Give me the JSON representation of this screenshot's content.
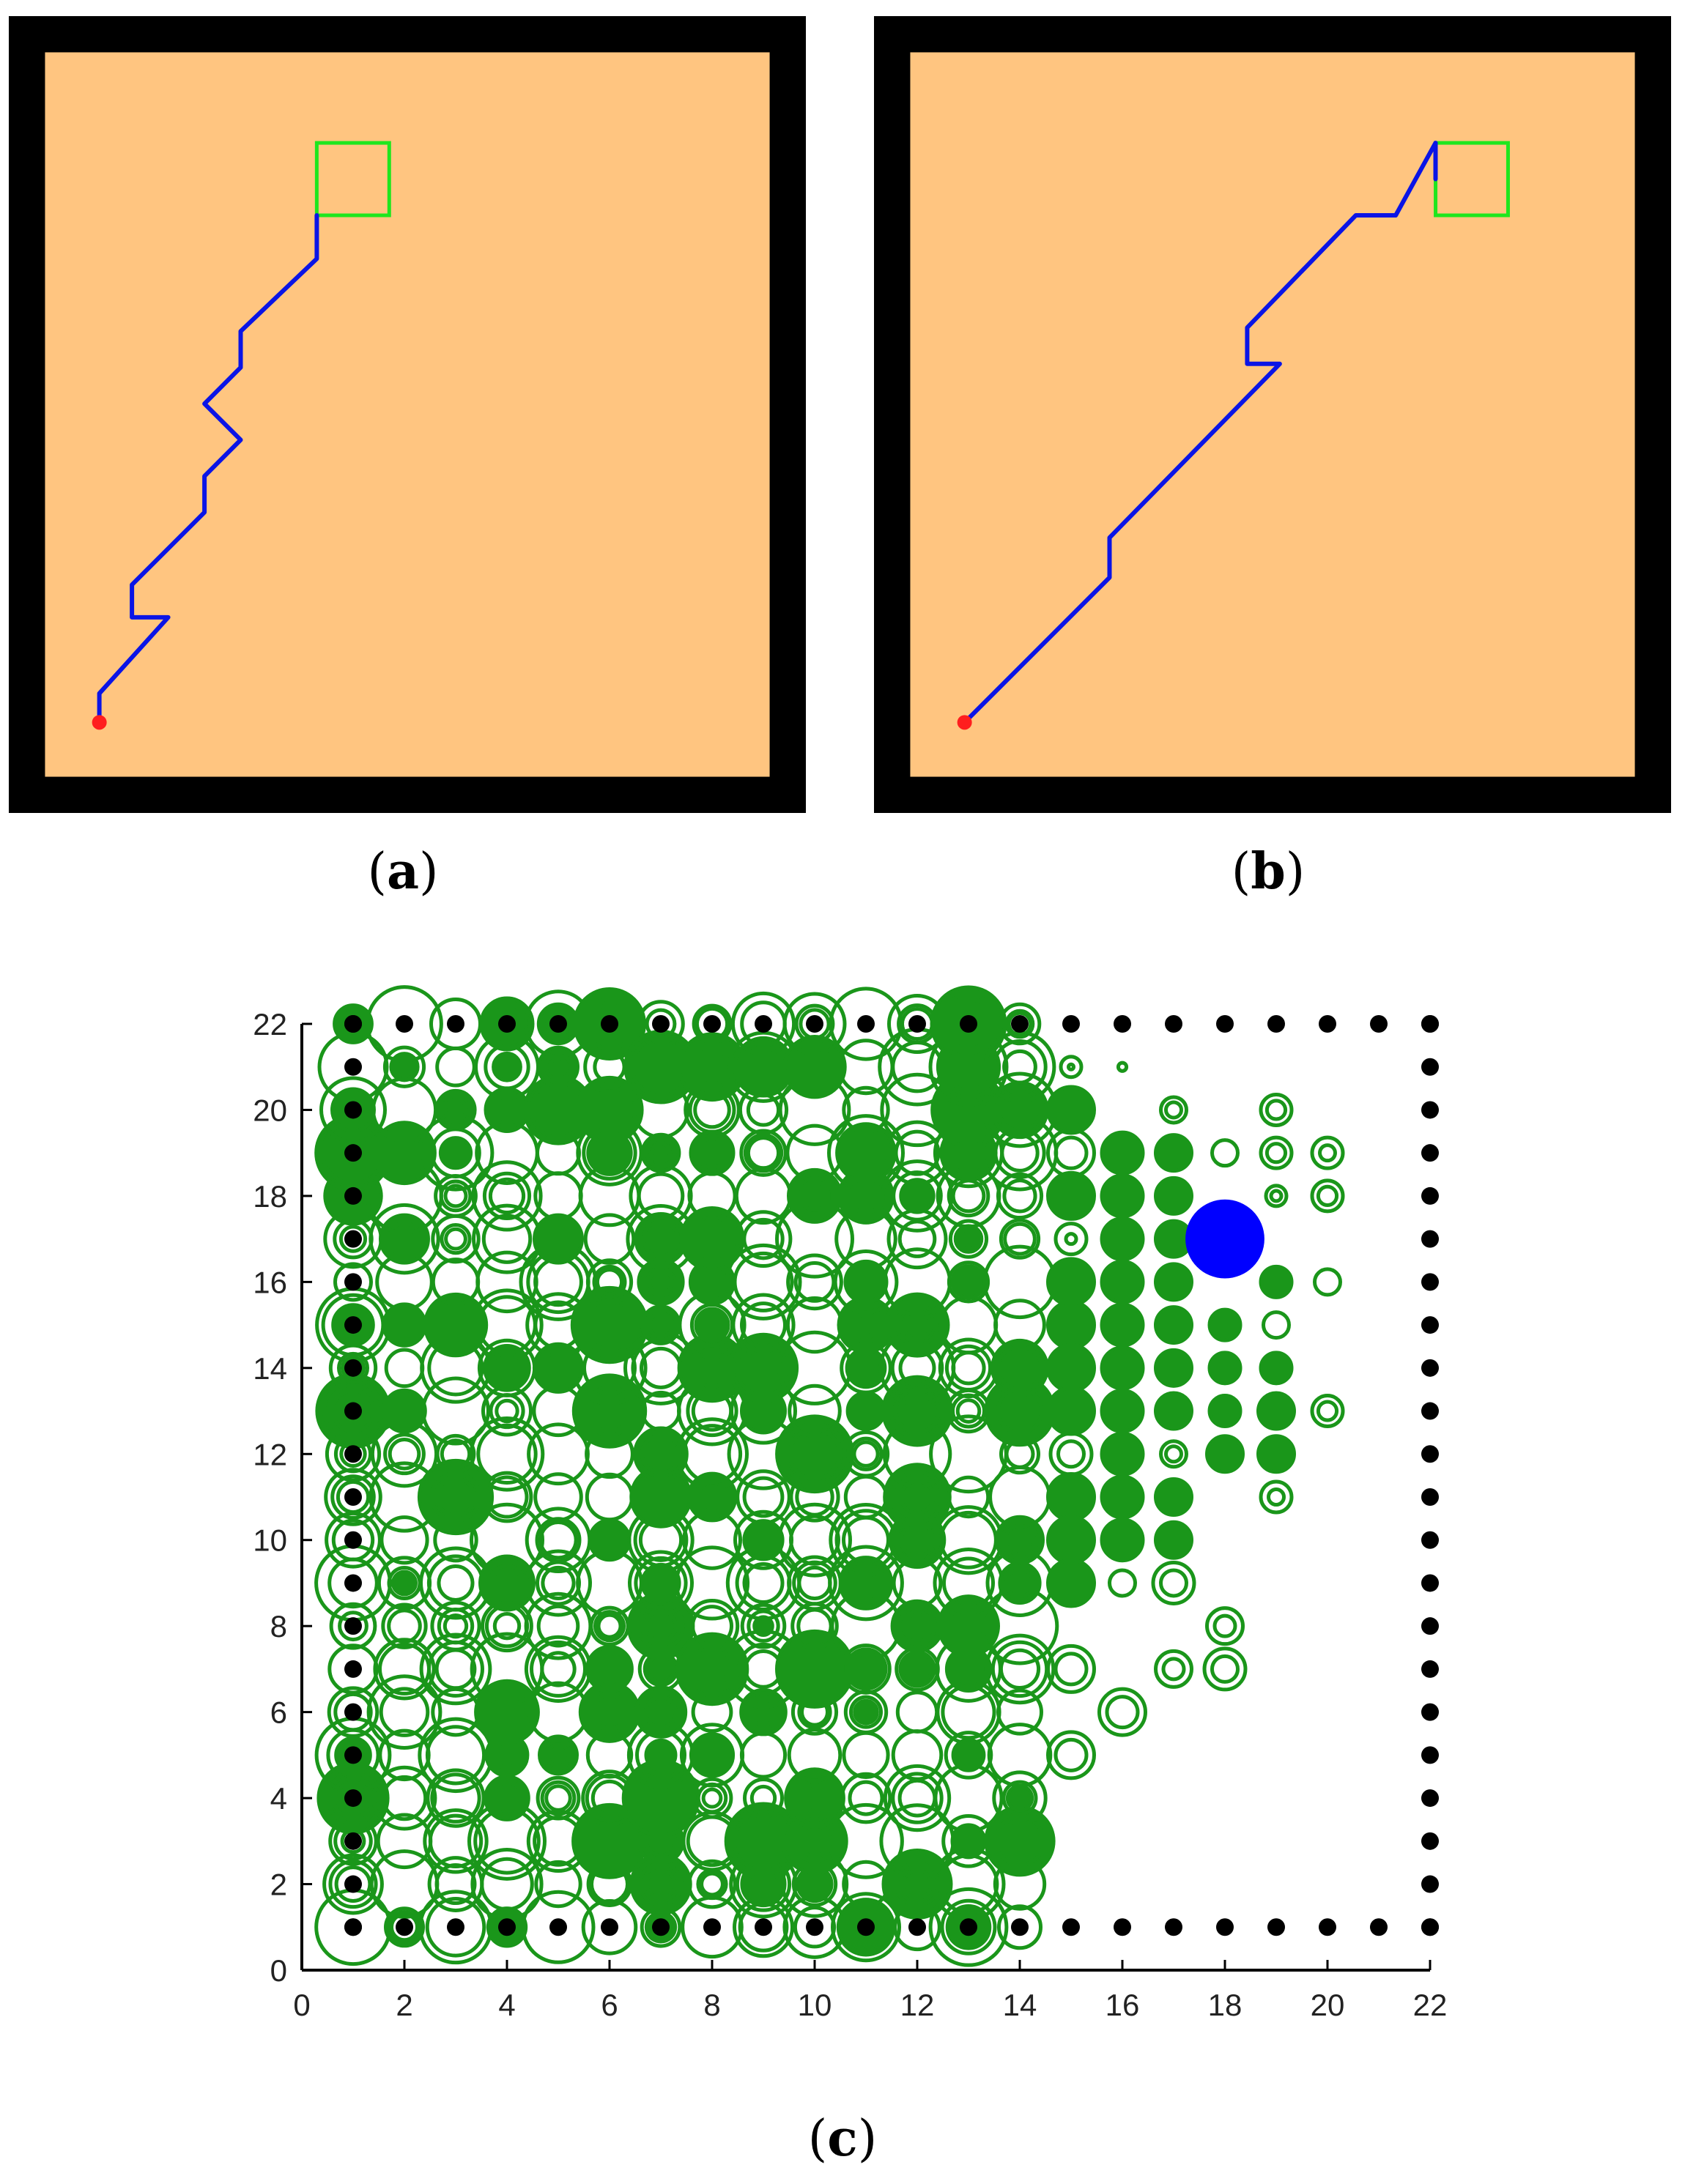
{
  "labels": {
    "a": {
      "open": "(",
      "letter": "a",
      "close": ")"
    },
    "b": {
      "open": "(",
      "letter": "b",
      "close": ")"
    },
    "c": {
      "open": "(",
      "letter": "c",
      "close": ")"
    }
  },
  "colors": {
    "wall": "#000000",
    "floor": "#ffc580",
    "path": "#0a14e6",
    "goal": "#1ee61e",
    "start": "#ff1e1e",
    "circle": "#1a961a",
    "agent": "#0000ff",
    "obstacle": "#000000"
  },
  "chart_data": [
    {
      "type": "line",
      "panel": "a",
      "grid": false,
      "axes_visible": false,
      "xlim": [
        0,
        22
      ],
      "ylim": [
        0,
        22
      ],
      "start": [
        2.5,
        2.5
      ],
      "goal_box": {
        "x": [
          8.5,
          10.5
        ],
        "y": [
          16.5,
          18.5
        ]
      },
      "path": [
        [
          2.5,
          2.5
        ],
        [
          2.5,
          3.3
        ],
        [
          4.4,
          5.4
        ],
        [
          3.4,
          5.4
        ],
        [
          3.4,
          6.3
        ],
        [
          5.4,
          8.3
        ],
        [
          5.4,
          9.3
        ],
        [
          6.4,
          10.3
        ],
        [
          5.4,
          11.3
        ],
        [
          6.4,
          12.3
        ],
        [
          6.4,
          13.3
        ],
        [
          8.5,
          15.3
        ],
        [
          8.5,
          16.5
        ]
      ]
    },
    {
      "type": "line",
      "panel": "b",
      "grid": false,
      "axes_visible": false,
      "xlim": [
        0,
        22
      ],
      "ylim": [
        0,
        22
      ],
      "start": [
        2.5,
        2.5
      ],
      "goal_box": {
        "x": [
          15.5,
          17.5
        ],
        "y": [
          16.5,
          18.5
        ]
      },
      "path": [
        [
          2.5,
          2.5
        ],
        [
          6.5,
          6.5
        ],
        [
          6.5,
          7.6
        ],
        [
          11.2,
          12.4
        ],
        [
          10.3,
          12.4
        ],
        [
          10.3,
          13.4
        ],
        [
          13.3,
          16.5
        ],
        [
          14.4,
          16.5
        ],
        [
          15.5,
          18.5
        ],
        [
          15.5,
          17.5
        ]
      ]
    },
    {
      "type": "scatter",
      "panel": "c",
      "grid": false,
      "xlim": [
        0,
        22
      ],
      "ylim": [
        0,
        22
      ],
      "xticks": [
        0,
        2,
        4,
        6,
        8,
        10,
        12,
        14,
        16,
        18,
        20,
        22
      ],
      "yticks": [
        0,
        2,
        4,
        6,
        8,
        10,
        12,
        14,
        16,
        18,
        20,
        22
      ],
      "obstacles": {
        "top_row": {
          "y": 22,
          "x": [
            1,
            2,
            3,
            4,
            5,
            6,
            7,
            8,
            9,
            10,
            11,
            12,
            13,
            14,
            15,
            16,
            17,
            18,
            19,
            20,
            21,
            22
          ]
        },
        "bottom_row": {
          "y": 1,
          "x": [
            1,
            2,
            3,
            4,
            5,
            6,
            7,
            8,
            9,
            10,
            11,
            12,
            13,
            14,
            15,
            16,
            17,
            18,
            19,
            20,
            21,
            22
          ]
        },
        "left_col": {
          "x": 1,
          "y": [
            1,
            2,
            3,
            4,
            5,
            6,
            7,
            8,
            9,
            10,
            11,
            12,
            13,
            14,
            15,
            16,
            17,
            18,
            19,
            20,
            21,
            22
          ]
        },
        "right_col": {
          "x": 22,
          "y": [
            1,
            2,
            3,
            4,
            5,
            6,
            7,
            8,
            9,
            10,
            11,
            12,
            13,
            14,
            15,
            16,
            17,
            18,
            19,
            20,
            21,
            22
          ]
        }
      },
      "agent": {
        "x": 18,
        "y": 17,
        "size": 0.55
      },
      "dense_region": {
        "x": [
          1,
          14
        ],
        "y": [
          1,
          22
        ]
      },
      "right_points": [
        {
          "x": 15,
          "y": 21,
          "sizes": [
            0.2,
            0.05
          ]
        },
        {
          "x": 15,
          "y": 20,
          "sizes": [
            0.45
          ]
        },
        {
          "x": 15,
          "y": 19,
          "sizes": [
            0.45,
            0.3
          ]
        },
        {
          "x": 15,
          "y": 18,
          "sizes": [
            0.45
          ]
        },
        {
          "x": 15,
          "y": 17,
          "sizes": [
            0.3,
            0.1
          ]
        },
        {
          "x": 15,
          "y": 16,
          "sizes": [
            0.45
          ]
        },
        {
          "x": 15,
          "y": 15,
          "sizes": [
            0.45
          ]
        },
        {
          "x": 15,
          "y": 14,
          "sizes": [
            0.45
          ]
        },
        {
          "x": 15,
          "y": 13,
          "sizes": [
            0.45
          ]
        },
        {
          "x": 15,
          "y": 12,
          "sizes": [
            0.4,
            0.25
          ]
        },
        {
          "x": 15,
          "y": 11,
          "sizes": [
            0.45
          ]
        },
        {
          "x": 15,
          "y": 10,
          "sizes": [
            0.45
          ]
        },
        {
          "x": 15,
          "y": 9,
          "sizes": [
            0.45
          ]
        },
        {
          "x": 15,
          "y": 7,
          "sizes": [
            0.45,
            0.3
          ]
        },
        {
          "x": 15,
          "y": 5,
          "sizes": [
            0.45,
            0.3
          ]
        },
        {
          "x": 16,
          "y": 21,
          "sizes": [
            0.08
          ]
        },
        {
          "x": 16,
          "y": 19,
          "sizes": [
            0.4
          ]
        },
        {
          "x": 16,
          "y": 18,
          "sizes": [
            0.4
          ]
        },
        {
          "x": 16,
          "y": 17,
          "sizes": [
            0.4
          ]
        },
        {
          "x": 16,
          "y": 16,
          "sizes": [
            0.4
          ]
        },
        {
          "x": 16,
          "y": 15,
          "sizes": [
            0.4
          ]
        },
        {
          "x": 16,
          "y": 14,
          "sizes": [
            0.4
          ]
        },
        {
          "x": 16,
          "y": 13,
          "sizes": [
            0.4
          ]
        },
        {
          "x": 16,
          "y": 12,
          "sizes": [
            0.4
          ]
        },
        {
          "x": 16,
          "y": 11,
          "sizes": [
            0.4
          ]
        },
        {
          "x": 16,
          "y": 10,
          "sizes": [
            0.4
          ]
        },
        {
          "x": 16,
          "y": 9,
          "sizes": [
            0.25
          ]
        },
        {
          "x": 16,
          "y": 6,
          "sizes": [
            0.45,
            0.3
          ]
        },
        {
          "x": 17,
          "y": 20,
          "sizes": [
            0.25,
            0.15
          ]
        },
        {
          "x": 17,
          "y": 19,
          "sizes": [
            0.35
          ]
        },
        {
          "x": 17,
          "y": 18,
          "sizes": [
            0.35
          ]
        },
        {
          "x": 17,
          "y": 17,
          "sizes": [
            0.35
          ]
        },
        {
          "x": 17,
          "y": 16,
          "sizes": [
            0.35
          ]
        },
        {
          "x": 17,
          "y": 15,
          "sizes": [
            0.35
          ]
        },
        {
          "x": 17,
          "y": 14,
          "sizes": [
            0.35
          ]
        },
        {
          "x": 17,
          "y": 13,
          "sizes": [
            0.35
          ]
        },
        {
          "x": 17,
          "y": 12,
          "sizes": [
            0.25,
            0.15
          ]
        },
        {
          "x": 17,
          "y": 11,
          "sizes": [
            0.35
          ]
        },
        {
          "x": 17,
          "y": 10,
          "sizes": [
            0.35
          ]
        },
        {
          "x": 17,
          "y": 9,
          "sizes": [
            0.4,
            0.25
          ]
        },
        {
          "x": 17,
          "y": 7,
          "sizes": [
            0.35,
            0.2
          ]
        },
        {
          "x": 18,
          "y": 19,
          "sizes": [
            0.25
          ]
        },
        {
          "x": 18,
          "y": 15,
          "sizes": [
            0.3
          ]
        },
        {
          "x": 18,
          "y": 14,
          "sizes": [
            0.3
          ]
        },
        {
          "x": 18,
          "y": 13,
          "sizes": [
            0.3
          ]
        },
        {
          "x": 18,
          "y": 12,
          "sizes": [
            0.35
          ]
        },
        {
          "x": 18,
          "y": 8,
          "sizes": [
            0.35,
            0.2
          ]
        },
        {
          "x": 18,
          "y": 7,
          "sizes": [
            0.4,
            0.25
          ]
        },
        {
          "x": 19,
          "y": 20,
          "sizes": [
            0.3,
            0.18
          ]
        },
        {
          "x": 19,
          "y": 19,
          "sizes": [
            0.3,
            0.18
          ]
        },
        {
          "x": 19,
          "y": 18,
          "sizes": [
            0.2,
            0.1
          ]
        },
        {
          "x": 19,
          "y": 16,
          "sizes": [
            0.3
          ]
        },
        {
          "x": 19,
          "y": 15,
          "sizes": [
            0.25
          ]
        },
        {
          "x": 19,
          "y": 14,
          "sizes": [
            0.3
          ]
        },
        {
          "x": 19,
          "y": 13,
          "sizes": [
            0.35
          ]
        },
        {
          "x": 19,
          "y": 12,
          "sizes": [
            0.35
          ]
        },
        {
          "x": 19,
          "y": 11,
          "sizes": [
            0.3,
            0.15
          ]
        },
        {
          "x": 20,
          "y": 19,
          "sizes": [
            0.3,
            0.15
          ]
        },
        {
          "x": 20,
          "y": 18,
          "sizes": [
            0.3,
            0.18
          ]
        },
        {
          "x": 20,
          "y": 16,
          "sizes": [
            0.25
          ]
        },
        {
          "x": 20,
          "y": 13,
          "sizes": [
            0.3,
            0.18
          ]
        }
      ]
    }
  ]
}
